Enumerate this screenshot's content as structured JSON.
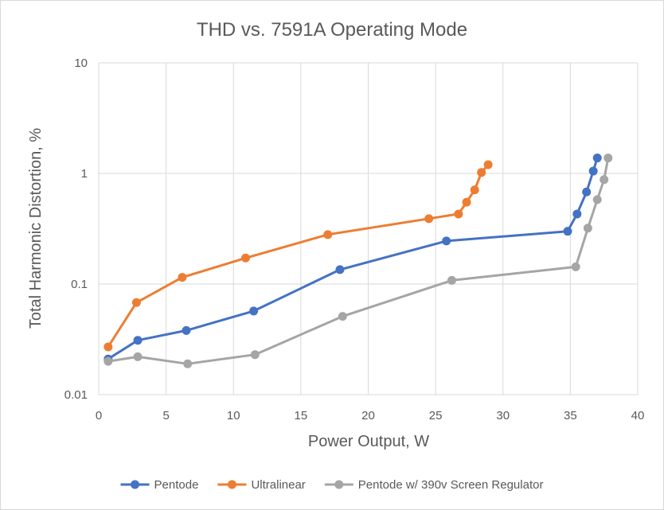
{
  "chart_data": {
    "type": "scatter",
    "title": "THD vs. 7591A Operating Mode",
    "xlabel": "Power Output, W",
    "ylabel": "Total Harmonic Distortion, %",
    "xlim": [
      0,
      40
    ],
    "ylim": [
      0.01,
      10
    ],
    "yscale": "log",
    "x_ticks": [
      "0",
      "5",
      "10",
      "15",
      "20",
      "25",
      "30",
      "35",
      "40"
    ],
    "y_ticks": [
      "0.01",
      "0.1",
      "1",
      "10"
    ],
    "grid": true,
    "legend_position": "bottom",
    "series": [
      {
        "name": "Pentode",
        "color": "#4472C4",
        "x": [
          0.7,
          2.9,
          6.5,
          11.5,
          17.9,
          25.8,
          34.8,
          35.5,
          36.2,
          36.7,
          37.0
        ],
        "y": [
          0.021,
          0.031,
          0.038,
          0.057,
          0.135,
          0.245,
          0.3,
          0.43,
          0.68,
          1.05,
          1.38
        ]
      },
      {
        "name": "Ultralinear",
        "color": "#ED7D31",
        "x": [
          0.7,
          2.8,
          6.2,
          10.9,
          17.0,
          24.5,
          26.7,
          27.3,
          27.9,
          28.4,
          28.9
        ],
        "y": [
          0.027,
          0.068,
          0.115,
          0.172,
          0.28,
          0.39,
          0.43,
          0.55,
          0.71,
          1.02,
          1.2
        ]
      },
      {
        "name": "Pentode w/ 390v Screen Regulator",
        "color": "#A5A5A5",
        "x": [
          0.7,
          2.9,
          6.6,
          11.6,
          18.1,
          26.2,
          35.4,
          36.3,
          37.0,
          37.5,
          37.8
        ],
        "y": [
          0.02,
          0.022,
          0.019,
          0.023,
          0.051,
          0.108,
          0.143,
          0.32,
          0.58,
          0.88,
          1.38
        ]
      }
    ]
  }
}
